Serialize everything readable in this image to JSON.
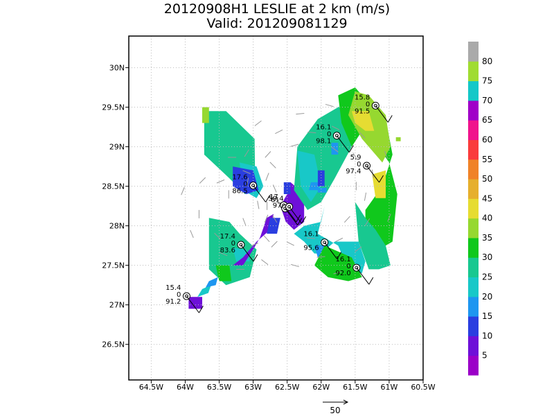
{
  "title": "20120908H1 LESLIE at 2 km (m/s)",
  "subtitle": "Valid: 201209081129",
  "chart_data": {
    "type": "heatmap",
    "xlim": [
      -64.83,
      -60.5
    ],
    "ylim": [
      26.05,
      30.4
    ],
    "xticks": [
      -64.5,
      -64,
      -63.5,
      -63,
      -62.5,
      -62,
      -61.5,
      -61,
      -60.5
    ],
    "xtick_labels": [
      "64.5W",
      "64W",
      "63.5W",
      "63W",
      "62.5W",
      "62W",
      "61.5W",
      "61W",
      "60.5W"
    ],
    "yticks": [
      26.5,
      27,
      27.5,
      28,
      28.5,
      29,
      29.5,
      30
    ],
    "ytick_labels": [
      "26.5N",
      "27N",
      "27.5N",
      "28N",
      "28.5N",
      "29N",
      "29.5N",
      "30N"
    ],
    "grid": true,
    "colorbar": {
      "levels": [
        "5",
        "10",
        "15",
        "20",
        "25",
        "30",
        "35",
        "40",
        "45",
        "50",
        "55",
        "60",
        "65",
        "70",
        "75",
        "80"
      ],
      "colors": [
        "#9b00c8",
        "#6e10d8",
        "#2a3ee0",
        "#1e96f0",
        "#18c8c8",
        "#18c890",
        "#10c81c",
        "#96d830",
        "#e6dc32",
        "#e6af2d",
        "#f08228",
        "#fa3c3c",
        "#f0148c",
        "#a000c8",
        "#14c8c8",
        "#a0dc32",
        "#aaaaaa"
      ]
    },
    "wind_regions": [
      {
        "lon": [
          -63.72,
          -63.4,
          -62.98,
          -62.97,
          -63.12,
          -63.35,
          -63.72
        ],
        "lat": [
          29.45,
          29.45,
          29.1,
          28.45,
          28.4,
          28.6,
          28.9
        ],
        "level": 25
      },
      {
        "lon": [
          -63.2,
          -62.95,
          -62.85,
          -62.95,
          -63.15
        ],
        "lat": [
          28.8,
          28.75,
          28.5,
          28.35,
          28.45
        ],
        "level": 20
      },
      {
        "lon": [
          -63.3,
          -63.0,
          -62.92,
          -63.1,
          -63.3
        ],
        "lat": [
          28.75,
          28.7,
          28.45,
          28.4,
          28.5
        ],
        "level": 10
      },
      {
        "lon": [
          -63.75,
          -63.65,
          -63.65,
          -63.75
        ],
        "lat": [
          29.5,
          29.5,
          29.3,
          29.3
        ],
        "level": 35
      },
      {
        "lon": [
          -63.65,
          -63.35,
          -63.2,
          -62.95,
          -63.05,
          -63.4,
          -63.65
        ],
        "lat": [
          28.1,
          28.05,
          27.9,
          27.7,
          27.35,
          27.25,
          27.45
        ],
        "level": 25
      },
      {
        "lon": [
          -63.55,
          -63.35,
          -63.32,
          -63.5
        ],
        "lat": [
          27.5,
          27.5,
          27.3,
          27.3
        ],
        "level": 30
      },
      {
        "lon": [
          -63.3,
          -63.1,
          -63.05,
          -63.25
        ],
        "lat": [
          27.72,
          27.7,
          27.55,
          27.55
        ],
        "level": 20
      },
      {
        "lon": [
          -62.8,
          -62.7,
          -62.75,
          -62.95,
          -63.15,
          -63.3,
          -63.15,
          -63.0,
          -62.9
        ],
        "lat": [
          28.1,
          28.15,
          27.95,
          27.8,
          27.6,
          27.5,
          27.5,
          27.7,
          27.85
        ],
        "level": 5
      },
      {
        "lon": [
          -62.75,
          -62.6,
          -62.65,
          -62.8
        ],
        "lat": [
          28.1,
          28.1,
          27.9,
          27.9
        ],
        "level": 10
      },
      {
        "lon": [
          -63.75,
          -63.62,
          -63.66,
          -63.82
        ],
        "lat": [
          27.2,
          27.25,
          27.15,
          27.1
        ],
        "level": 20
      },
      {
        "lon": [
          -63.65,
          -63.52,
          -63.55,
          -63.7
        ],
        "lat": [
          27.3,
          27.35,
          27.25,
          27.22
        ],
        "level": 15
      },
      {
        "lon": [
          -63.95,
          -63.75,
          -63.75,
          -63.95
        ],
        "lat": [
          27.1,
          27.1,
          26.95,
          26.95
        ],
        "level": 5
      },
      {
        "lon": [
          -62.45,
          -62.25,
          -62.25,
          -62.4,
          -62.52,
          -62.6,
          -62.5
        ],
        "lat": [
          28.55,
          28.4,
          28.05,
          27.95,
          28.05,
          28.25,
          28.4
        ],
        "level": 5
      },
      {
        "lon": [
          -62.55,
          -62.45,
          -62.45,
          -62.55
        ],
        "lat": [
          28.55,
          28.55,
          28.4,
          28.4
        ],
        "level": 10
      },
      {
        "lon": [
          -62.25,
          -62.0,
          -61.95,
          -62.05,
          -61.75,
          -61.6,
          -61.4,
          -61.35,
          -61.45,
          -61.8,
          -62.0,
          -62.1,
          -62.25,
          -62.4
        ],
        "lat": [
          28.0,
          28.05,
          28.25,
          27.9,
          27.75,
          27.45,
          27.4,
          27.55,
          27.8,
          27.8,
          27.65,
          27.65,
          27.8,
          27.9
        ],
        "level": 20
      },
      {
        "lon": [
          -62.1,
          -61.95,
          -61.88,
          -62.05
        ],
        "lat": [
          27.75,
          27.75,
          27.6,
          27.6
        ],
        "level": 15
      },
      {
        "lon": [
          -61.97,
          -61.83,
          -61.88,
          -62.0
        ],
        "lat": [
          27.72,
          27.7,
          27.55,
          27.55
        ],
        "level": 10
      },
      {
        "lon": [
          -61.8,
          -61.6,
          -61.55,
          -61.75
        ],
        "lat": [
          27.5,
          27.5,
          27.35,
          27.35
        ],
        "level": 25
      },
      {
        "lon": [
          -62.35,
          -62.05,
          -61.75,
          -61.55,
          -61.4,
          -61.55,
          -61.8,
          -62.0,
          -62.2,
          -62.4
        ],
        "lat": [
          29.0,
          29.35,
          29.5,
          29.6,
          29.3,
          29.0,
          28.6,
          28.3,
          28.2,
          28.45
        ],
        "level": 25
      },
      {
        "lon": [
          -62.35,
          -62.1,
          -62.0,
          -62.15,
          -62.3
        ],
        "lat": [
          28.95,
          28.9,
          28.5,
          28.3,
          28.5
        ],
        "level": 20
      },
      {
        "lon": [
          -62.15,
          -62.02,
          -62.05,
          -62.18
        ],
        "lat": [
          28.55,
          28.55,
          28.45,
          28.45
        ],
        "level": 15
      },
      {
        "lon": [
          -62.05,
          -61.95,
          -61.95,
          -62.05
        ],
        "lat": [
          28.7,
          28.7,
          28.5,
          28.5
        ],
        "level": 10
      },
      {
        "lon": [
          -61.85,
          -61.75,
          -61.75,
          -61.85
        ],
        "lat": [
          29.05,
          29.05,
          28.9,
          28.9
        ],
        "level": 15
      },
      {
        "lon": [
          -61.75,
          -61.5,
          -61.3,
          -61.05,
          -60.95,
          -61.1,
          -61.35,
          -61.35,
          -61.15,
          -60.95,
          -60.88,
          -61.0,
          -61.2,
          -61.4,
          -61.55,
          -61.7
        ],
        "lat": [
          29.65,
          29.75,
          29.55,
          29.35,
          28.9,
          28.5,
          28.2,
          27.9,
          27.7,
          27.8,
          28.4,
          28.8,
          29.05,
          29.2,
          29.0,
          29.3
        ],
        "level": 30
      },
      {
        "lon": [
          -61.5,
          -61.3,
          -61.05,
          -60.98,
          -61.1,
          -61.4,
          -61.6
        ],
        "lat": [
          29.7,
          29.65,
          29.4,
          29.0,
          28.8,
          29.1,
          29.4
        ],
        "level": 35
      },
      {
        "lon": [
          -61.55,
          -61.3,
          -61.22,
          -61.35,
          -61.5
        ],
        "lat": [
          29.45,
          29.45,
          29.2,
          29.2,
          29.3
        ],
        "level": 40
      },
      {
        "lon": [
          -61.25,
          -61.05,
          -61.05,
          -61.2
        ],
        "lat": [
          28.65,
          28.7,
          28.35,
          28.35
        ],
        "level": 40
      },
      {
        "lon": [
          -61.5,
          -61.35,
          -61.2,
          -61.05,
          -60.98,
          -61.15,
          -61.3,
          -61.45
        ],
        "lat": [
          28.3,
          28.1,
          27.95,
          27.75,
          27.5,
          27.45,
          27.45,
          27.8
        ],
        "level": 25
      },
      {
        "lon": [
          -61.95,
          -61.55,
          -61.4,
          -61.6,
          -61.9,
          -62.1
        ],
        "lat": [
          27.75,
          27.6,
          27.35,
          27.3,
          27.35,
          27.5
        ],
        "level": 30
      },
      {
        "lon": [
          -60.9,
          -60.83,
          -60.83,
          -60.9
        ],
        "lat": [
          29.12,
          29.12,
          29.07,
          29.07
        ],
        "level": 35
      },
      {
        "lon": [
          -62.05,
          -61.92,
          -61.92,
          -62.05
        ],
        "lat": [
          28.48,
          28.48,
          28.42,
          28.42
        ],
        "level": 15
      }
    ],
    "stations": [
      {
        "lon": -61.2,
        "lat": 29.52,
        "labels": [
          "15.8",
          "0",
          "91.5"
        ]
      },
      {
        "lon": -61.77,
        "lat": 29.14,
        "labels": [
          "16.1",
          "0",
          "98.1"
        ]
      },
      {
        "lon": -61.33,
        "lat": 28.76,
        "labels": [
          "5.9",
          "0",
          "97.4"
        ]
      },
      {
        "lon": -63.0,
        "lat": 28.51,
        "labels": [
          "17.6",
          "0",
          "86.5"
        ]
      },
      {
        "lon": -62.55,
        "lat": 28.26,
        "labels": [
          "17",
          "",
          ""
        ]
      },
      {
        "lon": -62.53,
        "lat": 28.22,
        "labels": [
          "61",
          "",
          ""
        ]
      },
      {
        "lon": -62.47,
        "lat": 28.24,
        "labels": [
          "59.4",
          "97.",
          ""
        ]
      },
      {
        "lon": -63.18,
        "lat": 27.76,
        "labels": [
          "17.4",
          "0",
          "83.6"
        ]
      },
      {
        "lon": -61.95,
        "lat": 27.79,
        "labels": [
          "16.1",
          "",
          "95.6"
        ]
      },
      {
        "lon": -61.48,
        "lat": 27.47,
        "labels": [
          "16.1",
          "0",
          "92.0"
        ]
      },
      {
        "lon": -63.98,
        "lat": 27.11,
        "labels": [
          "15.4",
          "0",
          "91.2"
        ]
      }
    ],
    "vector_scale_label": "50"
  }
}
